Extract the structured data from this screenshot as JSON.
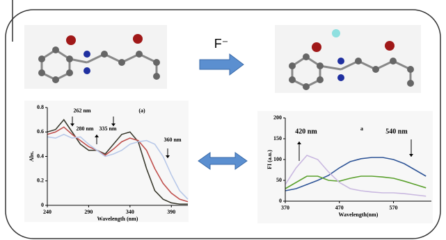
{
  "reagent_label": "F⁻",
  "chart_data": [
    {
      "type": "line",
      "y_label": "Abs.",
      "x_label": "Wavelength (nm)",
      "annotations": [
        "262 nm",
        "280 nm",
        "335 nm",
        "360 nm",
        "(a)"
      ],
      "xlim": [
        240,
        410
      ],
      "xticks": [
        240,
        290,
        340,
        390
      ],
      "ylim": [
        0,
        0.8
      ],
      "yticks": [
        0,
        0.2,
        0.4,
        0.6,
        0.8
      ],
      "x": [
        240,
        250,
        260,
        270,
        280,
        290,
        300,
        310,
        320,
        330,
        340,
        350,
        360,
        370,
        380,
        390,
        400,
        410
      ],
      "series": [
        {
          "color": "#3a3a2e",
          "values": [
            0.6,
            0.62,
            0.7,
            0.6,
            0.5,
            0.45,
            0.45,
            0.42,
            0.5,
            0.58,
            0.6,
            0.52,
            0.3,
            0.12,
            0.05,
            0.02,
            0.01,
            0.01
          ]
        },
        {
          "color": "#c0504d",
          "values": [
            0.58,
            0.6,
            0.64,
            0.58,
            0.53,
            0.48,
            0.45,
            0.41,
            0.46,
            0.52,
            0.55,
            0.53,
            0.45,
            0.3,
            0.18,
            0.1,
            0.05,
            0.03
          ]
        },
        {
          "color": "#b8c8e8",
          "values": [
            0.56,
            0.55,
            0.58,
            0.55,
            0.56,
            0.5,
            0.45,
            0.4,
            0.42,
            0.45,
            0.5,
            0.52,
            0.53,
            0.5,
            0.4,
            0.25,
            0.12,
            0.05
          ]
        }
      ]
    },
    {
      "type": "line",
      "y_label": "FI (a.u.)",
      "x_label": "Wavelength(nm)",
      "annotations": [
        "420 nm",
        "540 nm",
        "a"
      ],
      "xlim": [
        370,
        640
      ],
      "xticks": [
        370,
        470,
        570
      ],
      "ylim": [
        0,
        200
      ],
      "yticks": [
        0,
        50,
        100,
        150,
        200
      ],
      "x": [
        370,
        390,
        410,
        430,
        450,
        470,
        490,
        510,
        530,
        550,
        570,
        590,
        610,
        630
      ],
      "series": [
        {
          "color": "#2f5597",
          "values": [
            25,
            30,
            40,
            50,
            62,
            80,
            95,
            102,
            105,
            105,
            100,
            90,
            75,
            60
          ]
        },
        {
          "color": "#5aa02c",
          "values": [
            30,
            45,
            60,
            60,
            50,
            48,
            55,
            60,
            60,
            58,
            55,
            48,
            40,
            32
          ]
        },
        {
          "color": "#c9b8e0",
          "values": [
            40,
            80,
            110,
            100,
            70,
            45,
            30,
            25,
            22,
            20,
            20,
            18,
            15,
            12
          ]
        }
      ]
    }
  ]
}
